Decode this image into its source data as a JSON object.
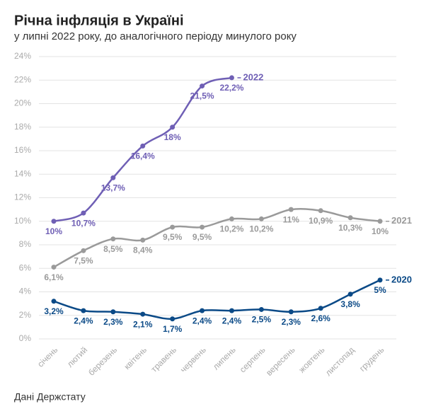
{
  "chart_data": {
    "type": "line",
    "title": "Річна інфляція в Україні",
    "subtitle": "у липні 2022 року, до аналогічного періоду минулого року",
    "source": "Дані Держстату",
    "categories": [
      "січень",
      "лютий",
      "березень",
      "квітень",
      "травень",
      "червень",
      "липень",
      "серпень",
      "вересень",
      "жовтень",
      "листопад",
      "грудень"
    ],
    "series": [
      {
        "name": "2022",
        "color": "#6f5fb5",
        "values": [
          10,
          10.7,
          13.7,
          16.4,
          18,
          21.5,
          22.2,
          null,
          null,
          null,
          null,
          null
        ],
        "value_labels": [
          "10%",
          "10,7%",
          "13,7%",
          "16,4%",
          "18%",
          "21,5%",
          "22,2%",
          null,
          null,
          null,
          null,
          null
        ]
      },
      {
        "name": "2021",
        "color": "#9a9a9a",
        "values": [
          6.1,
          7.5,
          8.5,
          8.4,
          9.5,
          9.5,
          10.2,
          10.2,
          11,
          10.9,
          10.3,
          10
        ],
        "value_labels": [
          "6,1%",
          "7,5%",
          "8,5%",
          "8,4%",
          "9,5%",
          "9,5%",
          "10,2%",
          "10,2%",
          "11%",
          "10,9%",
          "10,3%",
          "10%"
        ]
      },
      {
        "name": "2020",
        "color": "#0b4a87",
        "values": [
          3.2,
          2.4,
          2.3,
          2.1,
          1.7,
          2.4,
          2.4,
          2.5,
          2.3,
          2.6,
          3.8,
          5
        ],
        "value_labels": [
          "3,2%",
          "2,4%",
          "2,3%",
          "2,1%",
          "1,7%",
          "2,4%",
          "2,4%",
          "2,5%",
          "2,3%",
          "2,6%",
          "3,8%",
          "5%"
        ]
      }
    ],
    "ylim": [
      0,
      24
    ],
    "yticks": [
      {
        "value": 0,
        "label": "0%"
      },
      {
        "value": 2,
        "label": "2%"
      },
      {
        "value": 4,
        "label": "4%"
      },
      {
        "value": 6,
        "label": "6%"
      },
      {
        "value": 8,
        "label": "8%"
      },
      {
        "value": 10,
        "label": "10%"
      },
      {
        "value": 12,
        "label": "12%"
      },
      {
        "value": 14,
        "label": "14%"
      },
      {
        "value": 16,
        "label": "16%"
      },
      {
        "value": 18,
        "label": "18%"
      },
      {
        "value": 20,
        "label": "20%"
      },
      {
        "value": 22,
        "label": "22%"
      },
      {
        "value": 24,
        "label": "24%"
      }
    ],
    "grid": true
  }
}
